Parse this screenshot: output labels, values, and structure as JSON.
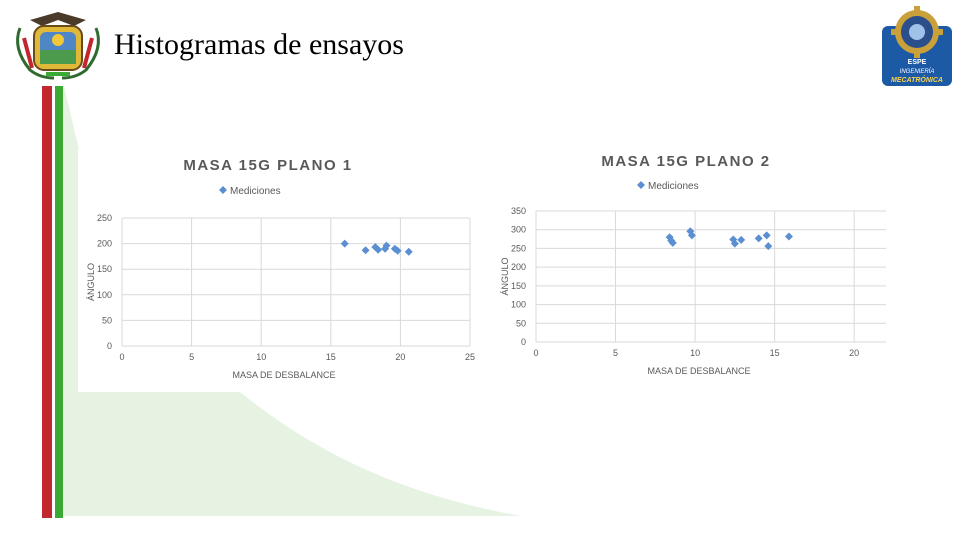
{
  "slide": {
    "title": "Histogramas de ensayos"
  },
  "logos": {
    "left_icon": "coat-of-arms-icon",
    "right_icon": "mechatronics-gear-logo-icon",
    "right_lines": [
      "ESPE",
      "INGENIERÍA",
      "MECATRÓNICA"
    ]
  },
  "colors": {
    "marker": "#5b8fd1",
    "stripe_red": "#c1272d",
    "stripe_green": "#3aaa35",
    "decor_green": "#e6f3e3"
  },
  "chart_data": [
    {
      "type": "scatter",
      "title": "MASA 15G PLANO 1",
      "legend": "Mediciones",
      "legend_position": "top",
      "xlabel": "MASA DE DESBALANCE",
      "ylabel": "ÁNGULO",
      "xlim": [
        0,
        25
      ],
      "ylim": [
        0,
        250
      ],
      "xticks": [
        0,
        5,
        10,
        15,
        20,
        25
      ],
      "yticks": [
        0,
        50,
        100,
        150,
        200,
        250
      ],
      "grid": true,
      "points": [
        {
          "x": 16.0,
          "y": 200
        },
        {
          "x": 17.5,
          "y": 187
        },
        {
          "x": 18.2,
          "y": 193
        },
        {
          "x": 18.4,
          "y": 188
        },
        {
          "x": 18.9,
          "y": 190
        },
        {
          "x": 19.0,
          "y": 196
        },
        {
          "x": 19.6,
          "y": 190
        },
        {
          "x": 19.8,
          "y": 186
        },
        {
          "x": 20.6,
          "y": 184
        }
      ]
    },
    {
      "type": "scatter",
      "title": "MASA 15G PLANO 2",
      "legend": "Mediciones",
      "legend_position": "top",
      "xlabel": "MASA DE DESBALANCE",
      "ylabel": "ÁNGULO",
      "xlim": [
        0,
        22
      ],
      "ylim": [
        0,
        350
      ],
      "xticks": [
        0,
        5,
        10,
        15,
        20
      ],
      "yticks": [
        0,
        50,
        100,
        150,
        200,
        250,
        300,
        350
      ],
      "grid": true,
      "points": [
        {
          "x": 8.4,
          "y": 280
        },
        {
          "x": 8.5,
          "y": 271
        },
        {
          "x": 8.6,
          "y": 265
        },
        {
          "x": 9.7,
          "y": 296
        },
        {
          "x": 9.8,
          "y": 285
        },
        {
          "x": 12.4,
          "y": 274
        },
        {
          "x": 12.5,
          "y": 263
        },
        {
          "x": 12.9,
          "y": 273
        },
        {
          "x": 14.0,
          "y": 277
        },
        {
          "x": 14.5,
          "y": 285
        },
        {
          "x": 14.6,
          "y": 256
        },
        {
          "x": 15.9,
          "y": 282
        }
      ]
    }
  ]
}
